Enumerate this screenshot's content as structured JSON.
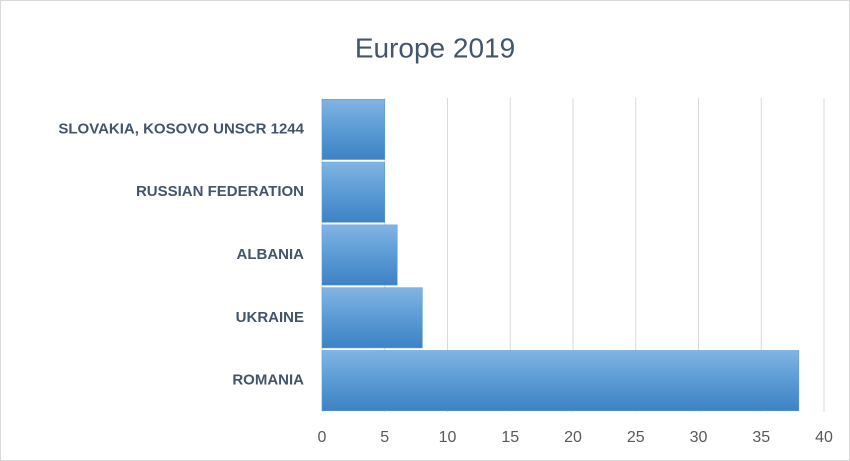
{
  "chart_data": {
    "type": "bar",
    "orientation": "horizontal",
    "title": "Europe 2019",
    "categories": [
      "SLOVAKIA, KOSOVO UNSCR 1244",
      "RUSSIAN FEDERATION",
      "ALBANIA",
      "UKRAINE",
      "ROMANIA"
    ],
    "values": [
      5,
      5,
      6,
      8,
      38
    ],
    "color": "#5b9bd5",
    "xlim": [
      0,
      40
    ],
    "xticks": [
      0,
      5,
      10,
      15,
      20,
      25,
      30,
      35,
      40
    ],
    "grid": true
  }
}
